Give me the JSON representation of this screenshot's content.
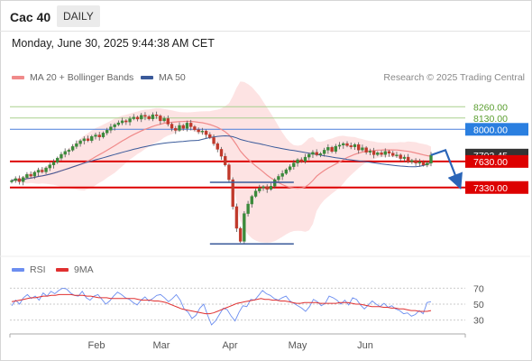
{
  "header": {
    "title": "Cac 40",
    "timeframe": "DAILY",
    "datetime": "Monday, June 30, 2025 9:44:38 AM CET"
  },
  "legend": {
    "ma20": "MA 20 + Bollinger Bands",
    "ma50": "MA 50",
    "copyright": "Research © 2025 Trading Central",
    "rsi": "RSI",
    "ma9": "9MA"
  },
  "colors": {
    "bullish": "#3a8a3a",
    "bearish": "#c0392b",
    "ma20": "#f08a8a",
    "ma50": "#3a5a9a",
    "bollinger": "#fcd9d9",
    "resistance": "#4a7fdc",
    "support": "#dd0000",
    "current": "#333333",
    "rsi": "#6c8ef0",
    "rsi_ma": "#e03030"
  },
  "chart_data": [
    {
      "type": "candlestick",
      "x_labels": [
        "Feb",
        "Mar",
        "Apr",
        "May",
        "Jun"
      ],
      "ylim": [
        6600,
        8450
      ],
      "price_labels": [
        {
          "text": "8260.00",
          "value": 8260,
          "style": "green"
        },
        {
          "text": "8130.00",
          "value": 8130,
          "style": "green"
        },
        {
          "text": "8000.00",
          "value": 8000,
          "style": "blue"
        },
        {
          "text": "7703.45",
          "value": 7703.45,
          "style": "current"
        },
        {
          "text": "7630.00",
          "value": 7630,
          "style": "red"
        },
        {
          "text": "7330.00",
          "value": 7330,
          "style": "red"
        }
      ],
      "closes": [
        7410,
        7432,
        7398,
        7445,
        7480,
        7462,
        7505,
        7530,
        7510,
        7555,
        7590,
        7620,
        7668,
        7712,
        7745,
        7760,
        7802,
        7835,
        7868,
        7892,
        7870,
        7918,
        7935,
        7912,
        7958,
        7990,
        8028,
        8054,
        8075,
        8098,
        8085,
        8122,
        8140,
        8118,
        8162,
        8148,
        8120,
        8168,
        8155,
        8098,
        8124,
        8060,
        8012,
        7988,
        8045,
        8010,
        8072,
        8030,
        7995,
        7972,
        7980,
        7940,
        7905,
        7835,
        7770,
        7690,
        7590,
        7420,
        7110,
        6860,
        6710,
        7030,
        7140,
        7228,
        7290,
        7325,
        7340,
        7310,
        7345,
        7420,
        7458,
        7492,
        7535,
        7570,
        7612,
        7650,
        7632,
        7680,
        7712,
        7735,
        7706,
        7720,
        7760,
        7792,
        7745,
        7805,
        7818,
        7836,
        7812,
        7798,
        7824,
        7762,
        7788,
        7736,
        7750,
        7708,
        7730,
        7710,
        7745,
        7725,
        7698,
        7705,
        7664,
        7680,
        7626,
        7642,
        7612,
        7625,
        7590,
        7610,
        7703
      ],
      "annotations": {
        "consolidation_top": 7390,
        "crash_low": 6680,
        "projection": [
          7703,
          7760,
          7350
        ]
      }
    },
    {
      "type": "line",
      "title": "RSI",
      "y_ticks": [
        70,
        50,
        30
      ],
      "ylim": [
        15,
        85
      ],
      "series": [
        {
          "name": "RSI",
          "values": [
            48,
            55,
            50,
            58,
            62,
            57,
            60,
            55,
            64,
            60,
            66,
            63,
            67,
            70,
            69,
            64,
            61,
            60,
            66,
            58,
            55,
            60,
            62,
            56,
            50,
            54,
            60,
            65,
            62,
            58,
            56,
            52,
            49,
            55,
            59,
            54,
            57,
            61,
            62,
            58,
            53,
            57,
            62,
            55,
            44,
            40,
            32,
            36,
            45,
            50,
            36,
            24,
            29,
            37,
            45,
            43,
            35,
            29,
            40,
            48,
            47,
            56,
            55,
            61,
            67,
            63,
            61,
            57,
            55,
            58,
            60,
            54,
            51,
            48,
            45,
            41,
            47,
            56,
            53,
            48,
            51,
            60,
            58,
            55,
            50,
            55,
            49,
            58,
            56,
            49,
            44,
            49,
            54,
            50,
            47,
            51,
            46,
            48,
            44,
            42,
            38,
            39,
            35,
            37,
            42,
            38,
            52,
            53
          ]
        },
        {
          "name": "9MA",
          "values": [
            53,
            54,
            55,
            56,
            57,
            58,
            58,
            59,
            60,
            60,
            61,
            61,
            62,
            62,
            62,
            62,
            61,
            61,
            61,
            60,
            60,
            59,
            58,
            58,
            58,
            57,
            57,
            57,
            57,
            57,
            57,
            57,
            56,
            55,
            55,
            55,
            54,
            54,
            53,
            52,
            50,
            48,
            46,
            44,
            43,
            42,
            41,
            40,
            39,
            38,
            38,
            39,
            41,
            43,
            45,
            47,
            49,
            51,
            52,
            53,
            54,
            55,
            56,
            57,
            56,
            56,
            55,
            55,
            54,
            54,
            53,
            52,
            51,
            51,
            52,
            52,
            52,
            52,
            51,
            51,
            51,
            51,
            51,
            52,
            52,
            52,
            51,
            50,
            50,
            49,
            48,
            47,
            47,
            47,
            46,
            46,
            45,
            45,
            44,
            44,
            43,
            42,
            42,
            41,
            41,
            41,
            42
          ]
        }
      ]
    }
  ]
}
